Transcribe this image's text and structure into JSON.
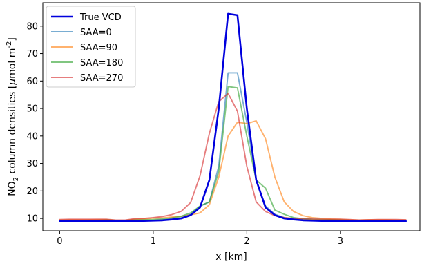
{
  "chart_data": {
    "type": "line",
    "title": "",
    "xlabel": "x [km]",
    "ylabel_parts": {
      "prefix": "NO",
      "subscript": "2",
      "middle": " column densities [",
      "mu": "μ",
      "unit_before_sup": "mol m",
      "superscript": "-2",
      "suffix": "]"
    },
    "xlim": [
      -0.18,
      3.85
    ],
    "ylim": [
      5.5,
      88.5
    ],
    "xticks": [
      0,
      1,
      2,
      3
    ],
    "yticks": [
      10,
      20,
      30,
      40,
      50,
      60,
      70,
      80
    ],
    "grid": false,
    "legend_position": "top-left",
    "x": [
      0.0,
      0.1,
      0.2,
      0.3,
      0.4,
      0.5,
      0.6,
      0.7,
      0.8,
      0.9,
      1.0,
      1.1,
      1.2,
      1.3,
      1.4,
      1.5,
      1.6,
      1.7,
      1.8,
      1.9,
      2.0,
      2.1,
      2.2,
      2.3,
      2.4,
      2.5,
      2.6,
      2.7,
      2.8,
      2.9,
      3.0,
      3.1,
      3.2,
      3.3,
      3.4,
      3.5,
      3.6,
      3.7
    ],
    "series": [
      {
        "name": "True VCD",
        "color": "#0000dd",
        "width": 2.6,
        "opacity": 1.0,
        "values": [
          9.0,
          9.0,
          9.0,
          9.0,
          9.0,
          9.0,
          9.0,
          9.0,
          9.1,
          9.1,
          9.2,
          9.3,
          9.6,
          10.0,
          11.2,
          14.0,
          24.0,
          50.0,
          84.5,
          84.0,
          50.0,
          24.0,
          14.0,
          11.2,
          10.0,
          9.6,
          9.3,
          9.2,
          9.1,
          9.1,
          9.0,
          9.0,
          9.0,
          9.0,
          9.0,
          9.0,
          9.0,
          9.0
        ]
      },
      {
        "name": "SAA=0",
        "color": "#1f77b4",
        "width": 1.9,
        "opacity": 0.6,
        "values": [
          9.0,
          9.0,
          9.0,
          9.0,
          9.0,
          9.0,
          9.0,
          9.0,
          9.1,
          9.2,
          9.3,
          9.5,
          9.8,
          10.3,
          11.5,
          14.5,
          16.0,
          29.0,
          63.0,
          63.0,
          45.0,
          24.0,
          14.5,
          11.5,
          10.3,
          9.8,
          9.5,
          9.3,
          9.2,
          9.1,
          9.0,
          9.0,
          9.0,
          9.0,
          9.0,
          9.0,
          9.0,
          9.0
        ]
      },
      {
        "name": "SAA=90",
        "color": "#ff7f0e",
        "width": 1.9,
        "opacity": 0.6,
        "values": [
          9.4,
          9.5,
          9.5,
          9.5,
          9.6,
          9.6,
          9.3,
          9.3,
          9.7,
          9.8,
          10.1,
          10.2,
          10.5,
          10.8,
          11.3,
          12.0,
          15.0,
          25.0,
          40.0,
          45.0,
          44.5,
          45.5,
          39.0,
          25.0,
          16.0,
          12.5,
          11.0,
          10.3,
          10.0,
          9.8,
          9.7,
          9.5,
          9.4,
          9.5,
          9.5,
          9.5,
          9.4,
          9.4
        ]
      },
      {
        "name": "SAA=180",
        "color": "#2ca02c",
        "width": 1.9,
        "opacity": 0.6,
        "values": [
          9.3,
          9.3,
          9.3,
          9.3,
          9.3,
          9.4,
          9.3,
          9.3,
          9.4,
          9.5,
          9.6,
          9.8,
          10.2,
          10.8,
          12.0,
          14.5,
          16.0,
          27.0,
          58.0,
          57.5,
          40.0,
          24.0,
          21.0,
          13.0,
          11.5,
          10.3,
          9.9,
          9.7,
          9.6,
          9.5,
          9.4,
          9.3,
          9.3,
          9.3,
          9.3,
          9.3,
          9.3,
          9.3
        ]
      },
      {
        "name": "SAA=270",
        "color": "#d62728",
        "width": 1.9,
        "opacity": 0.6,
        "values": [
          9.6,
          9.7,
          9.7,
          9.7,
          9.7,
          9.7,
          9.4,
          9.4,
          9.9,
          10.0,
          10.3,
          10.7,
          11.4,
          12.6,
          15.8,
          25.5,
          41.0,
          52.5,
          55.5,
          49.0,
          29.0,
          16.0,
          12.5,
          11.0,
          10.3,
          10.0,
          9.9,
          9.8,
          9.7,
          9.7,
          9.7,
          9.6,
          9.4,
          9.5,
          9.6,
          9.6,
          9.6,
          9.5
        ]
      }
    ]
  }
}
